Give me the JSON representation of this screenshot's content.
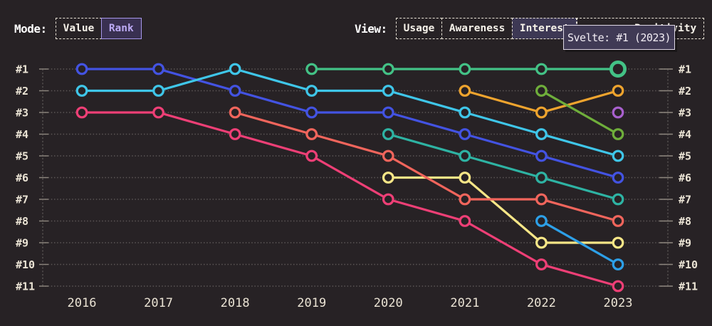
{
  "toolbar": {
    "mode_label": "Mode:",
    "mode_options": [
      {
        "label": "Value",
        "selected": false
      },
      {
        "label": "Rank",
        "selected": true
      }
    ],
    "view_label": "View:",
    "view_options": [
      {
        "label": "Usage",
        "selected": false
      },
      {
        "label": "Awareness",
        "selected": false
      },
      {
        "label": "Interest",
        "selected": true
      },
      {
        "label": "Positivity",
        "selected": false
      }
    ]
  },
  "tooltip": {
    "text": "Svelte: #1 (2023)"
  },
  "colors": {
    "background": "#272225",
    "axis_text": "#eae3d4",
    "grid_dots": "#6e6867",
    "accent_purple": "#bcaaf4",
    "tooltip_bg": "#403a55"
  },
  "chart_data": {
    "type": "line",
    "subtype": "bump-rank-chart",
    "x": [
      "2016",
      "2017",
      "2018",
      "2019",
      "2020",
      "2021",
      "2022",
      "2023"
    ],
    "y_axis": {
      "labels": [
        "#1",
        "#2",
        "#3",
        "#4",
        "#5",
        "#6",
        "#7",
        "#8",
        "#9",
        "#10",
        "#11"
      ],
      "best_rank": 1,
      "worst_rank": 11,
      "shown_on_both_sides": true
    },
    "grid": true,
    "legend": "none",
    "series": [
      {
        "id": "blue",
        "color": "#4353e2",
        "ranks": [
          1,
          1,
          2,
          3,
          3,
          4,
          5,
          6
        ]
      },
      {
        "id": "cyan",
        "color": "#3fc6e9",
        "ranks": [
          2,
          2,
          1,
          2,
          2,
          3,
          4,
          5
        ]
      },
      {
        "id": "teal",
        "color": "#2eb3a3",
        "ranks": [
          null,
          null,
          null,
          null,
          4,
          5,
          6,
          7
        ]
      },
      {
        "id": "yellow",
        "color": "#f6e687",
        "ranks": [
          null,
          null,
          null,
          null,
          6,
          6,
          9,
          9
        ]
      },
      {
        "id": "salmon",
        "color": "#f1655c",
        "ranks": [
          null,
          null,
          3,
          4,
          5,
          7,
          7,
          8
        ]
      },
      {
        "id": "pink",
        "color": "#ee3f76",
        "ranks": [
          3,
          3,
          4,
          5,
          7,
          8,
          10,
          11
        ]
      },
      {
        "id": "svelte",
        "name": "Svelte",
        "color": "#43c286",
        "ranks": [
          null,
          null,
          null,
          1,
          1,
          1,
          1,
          1
        ]
      },
      {
        "id": "orange",
        "color": "#efa42e",
        "ranks": [
          null,
          null,
          null,
          null,
          null,
          2,
          3,
          2
        ]
      },
      {
        "id": "olive",
        "color": "#6fae3b",
        "ranks": [
          null,
          null,
          null,
          null,
          null,
          null,
          2,
          4
        ]
      },
      {
        "id": "sky",
        "color": "#2da0e8",
        "ranks": [
          null,
          null,
          null,
          null,
          null,
          null,
          8,
          10
        ]
      },
      {
        "id": "purple",
        "color": "#a860cd",
        "ranks": [
          null,
          null,
          null,
          null,
          null,
          null,
          null,
          3
        ]
      }
    ],
    "highlight": {
      "series_id": "svelte",
      "series_name": "Svelte",
      "x": "2023",
      "rank": 1
    }
  }
}
